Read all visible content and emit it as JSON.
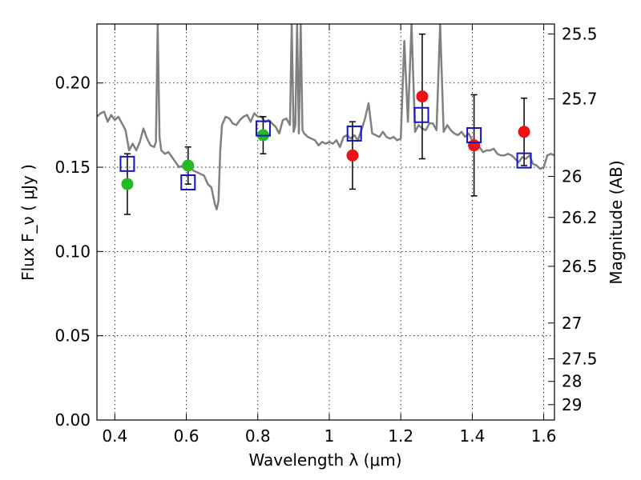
{
  "chart_data": {
    "type": "scatter",
    "xlabel": "Wavelength λ (μm)",
    "ylabel": "Flux F_ν ( μJy )",
    "ylabel_right": "Magnitude (AB)",
    "xlim": [
      0.35,
      1.63
    ],
    "ylim": [
      0.0,
      0.235
    ],
    "grid": true,
    "x_ticks": [
      {
        "value": 0.4,
        "label": "0.4"
      },
      {
        "value": 0.6,
        "label": "0.6"
      },
      {
        "value": 0.8,
        "label": "0.8"
      },
      {
        "value": 1.0,
        "label": "1"
      },
      {
        "value": 1.2,
        "label": "1.2"
      },
      {
        "value": 1.4,
        "label": "1.4"
      },
      {
        "value": 1.6,
        "label": "1.6"
      }
    ],
    "y_ticks": [
      {
        "value": 0.0,
        "label": "0.00"
      },
      {
        "value": 0.05,
        "label": "0.05"
      },
      {
        "value": 0.1,
        "label": "0.10"
      },
      {
        "value": 0.15,
        "label": "0.15"
      },
      {
        "value": 0.2,
        "label": "0.20"
      }
    ],
    "y2_ticks": [
      {
        "value": 25.5,
        "label": "25.5"
      },
      {
        "value": 25.7,
        "label": "25.7"
      },
      {
        "value": 26,
        "label": "26"
      },
      {
        "value": 26.2,
        "label": "26.2"
      },
      {
        "value": 26.5,
        "label": "26.5"
      },
      {
        "value": 27,
        "label": "27"
      },
      {
        "value": 27.5,
        "label": "27.5"
      },
      {
        "value": 28,
        "label": "28"
      },
      {
        "value": 29,
        "label": "29"
      }
    ],
    "series": [
      {
        "kind": "line",
        "color": "#808080",
        "x": [
          0.35,
          0.36,
          0.37,
          0.38,
          0.39,
          0.4,
          0.41,
          0.42,
          0.43,
          0.44,
          0.45,
          0.46,
          0.47,
          0.48,
          0.49,
          0.5,
          0.51,
          0.515,
          0.52,
          0.525,
          0.53,
          0.54,
          0.55,
          0.56,
          0.57,
          0.58,
          0.59,
          0.6,
          0.61,
          0.62,
          0.63,
          0.64,
          0.65,
          0.66,
          0.67,
          0.68,
          0.685,
          0.69,
          0.695,
          0.7,
          0.71,
          0.72,
          0.73,
          0.74,
          0.75,
          0.76,
          0.77,
          0.78,
          0.79,
          0.8,
          0.81,
          0.82,
          0.83,
          0.84,
          0.85,
          0.86,
          0.87,
          0.88,
          0.89,
          0.895,
          0.9,
          0.905,
          0.91,
          0.915,
          0.92,
          0.925,
          0.93,
          0.94,
          0.95,
          0.96,
          0.97,
          0.98,
          0.99,
          1.0,
          1.01,
          1.02,
          1.03,
          1.04,
          1.05,
          1.06,
          1.07,
          1.08,
          1.09,
          1.1,
          1.11,
          1.12,
          1.13,
          1.14,
          1.15,
          1.16,
          1.17,
          1.18,
          1.19,
          1.2,
          1.21,
          1.22,
          1.23,
          1.24,
          1.25,
          1.26,
          1.27,
          1.28,
          1.29,
          1.3,
          1.31,
          1.32,
          1.33,
          1.34,
          1.35,
          1.36,
          1.37,
          1.38,
          1.39,
          1.4,
          1.41,
          1.42,
          1.43,
          1.44,
          1.45,
          1.46,
          1.47,
          1.48,
          1.49,
          1.5,
          1.51,
          1.52,
          1.53,
          1.54,
          1.55,
          1.56,
          1.57,
          1.58,
          1.59,
          1.6,
          1.61,
          1.62,
          1.63
        ],
        "y": [
          0.18,
          0.182,
          0.183,
          0.177,
          0.181,
          0.178,
          0.18,
          0.176,
          0.172,
          0.16,
          0.164,
          0.16,
          0.165,
          0.173,
          0.167,
          0.163,
          0.162,
          0.165,
          0.235,
          0.168,
          0.16,
          0.158,
          0.159,
          0.156,
          0.153,
          0.15,
          0.151,
          0.153,
          0.15,
          0.148,
          0.147,
          0.146,
          0.145,
          0.14,
          0.138,
          0.128,
          0.125,
          0.13,
          0.16,
          0.175,
          0.18,
          0.179,
          0.176,
          0.175,
          0.178,
          0.18,
          0.181,
          0.177,
          0.182,
          0.18,
          0.18,
          0.177,
          0.178,
          0.176,
          0.174,
          0.17,
          0.178,
          0.179,
          0.175,
          0.235,
          0.171,
          0.175,
          0.235,
          0.17,
          0.235,
          0.172,
          0.17,
          0.168,
          0.167,
          0.166,
          0.163,
          0.165,
          0.164,
          0.165,
          0.164,
          0.166,
          0.162,
          0.168,
          0.169,
          0.167,
          0.169,
          0.166,
          0.172,
          0.179,
          0.188,
          0.17,
          0.169,
          0.168,
          0.171,
          0.168,
          0.167,
          0.168,
          0.166,
          0.167,
          0.225,
          0.177,
          0.235,
          0.171,
          0.175,
          0.173,
          0.172,
          0.176,
          0.176,
          0.172,
          0.235,
          0.171,
          0.175,
          0.172,
          0.17,
          0.169,
          0.171,
          0.168,
          0.17,
          0.166,
          0.165,
          0.162,
          0.159,
          0.16,
          0.16,
          0.161,
          0.158,
          0.157,
          0.157,
          0.158,
          0.157,
          0.155,
          0.153,
          0.156,
          0.155,
          0.157,
          0.152,
          0.151,
          0.149,
          0.15,
          0.157,
          0.158,
          0.157
        ]
      },
      {
        "kind": "points",
        "marker": "circle",
        "color": "#22bb22",
        "x": [
          0.435,
          0.605,
          0.815
        ],
        "y": [
          0.14,
          0.151,
          0.169
        ],
        "yerr": [
          0.018,
          0.011,
          0.011
        ]
      },
      {
        "kind": "points",
        "marker": "circle",
        "color": "#ee1111",
        "x": [
          1.065,
          1.26,
          1.405,
          1.545
        ],
        "y": [
          0.157,
          0.192,
          0.163,
          0.171
        ],
        "yerr": [
          0.02,
          0.037,
          0.03,
          0.02
        ]
      },
      {
        "kind": "points",
        "marker": "square-open",
        "color": "#1111cc",
        "x": [
          0.435,
          0.605,
          0.815,
          1.07,
          1.258,
          1.405,
          1.545
        ],
        "y": [
          0.152,
          0.141,
          0.173,
          0.17,
          0.181,
          0.169,
          0.154
        ]
      }
    ]
  }
}
